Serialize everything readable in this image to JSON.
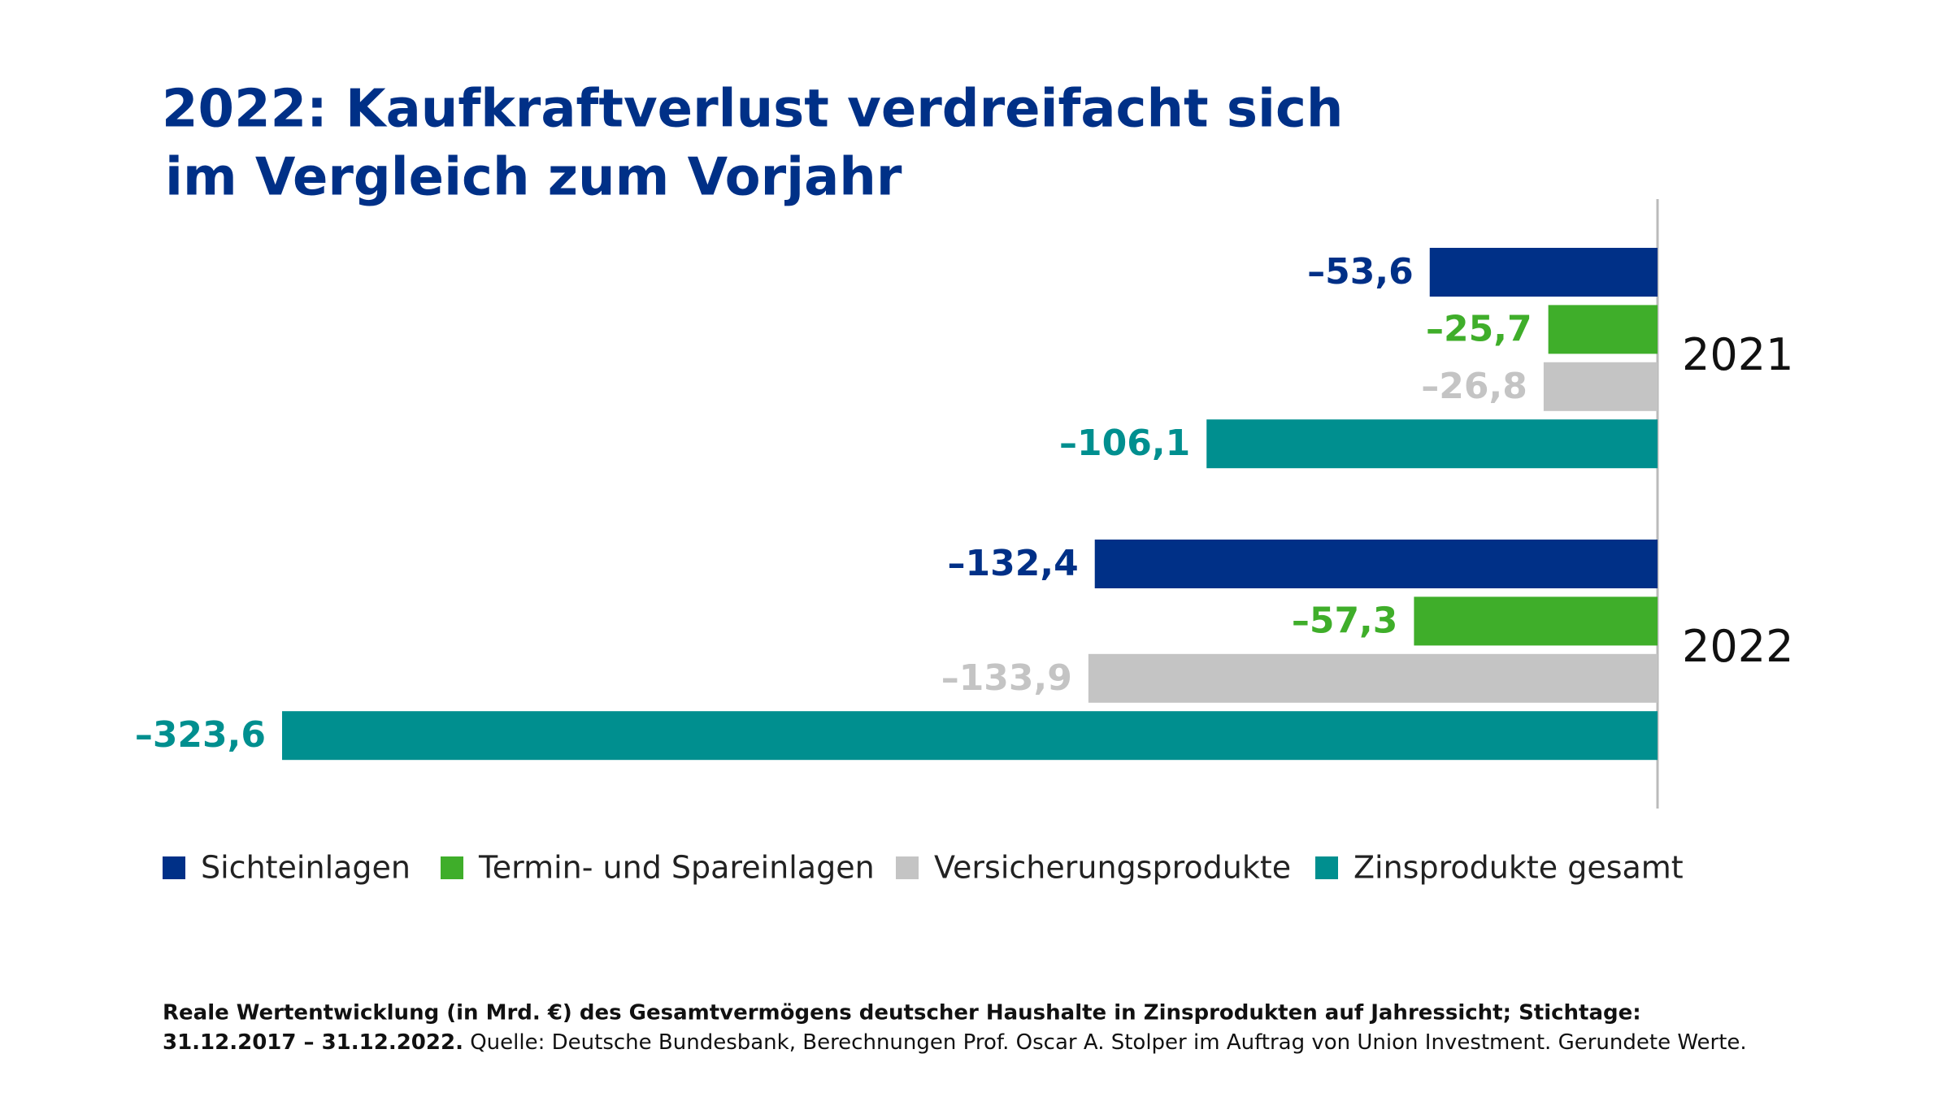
{
  "chart_data": {
    "type": "hbar",
    "title": [
      "2022: Kaufkraftverlust verdreifacht sich",
      "im Vergleich zum Vorjahr"
    ],
    "categories": [
      "2021",
      "2022"
    ],
    "series": [
      {
        "name": "Sichteinlagen",
        "color": "#003087",
        "values": [
          -53.6,
          -132.4
        ],
        "value_labels": [
          "–53,6",
          "–132,4"
        ]
      },
      {
        "name": "Termin- und Spareinlagen",
        "color": "#3fae2a",
        "values": [
          -25.7,
          -57.3
        ],
        "value_labels": [
          "–25,7",
          "–57,3"
        ]
      },
      {
        "name": "Versicherungsprodukte",
        "color": "#c4c4c4",
        "values": [
          -26.8,
          -133.9
        ],
        "value_labels": [
          "–26,8",
          "–133,9"
        ]
      },
      {
        "name": "Zinsprodukte gesamt",
        "color": "#008f8f",
        "values": [
          -106.1,
          -323.6
        ],
        "value_labels": [
          "–106,1",
          "–323,6"
        ]
      }
    ],
    "legend": "bottom",
    "footnote": {
      "line1_bold": "Reale Wertentwicklung (in Mrd. €) des Gesamtvermögens deutscher Haushalte in Zinsprodukten auf Jahressicht; Stichtage:",
      "line2_bold": "31.12.2017 – 31.12.2022.",
      "line2_normal": " Quelle: Deutsche Bundesbank, Berechnungen Prof. Oscar A. Stolper im Auftrag von Union Investment. Gerundete Werte."
    }
  }
}
